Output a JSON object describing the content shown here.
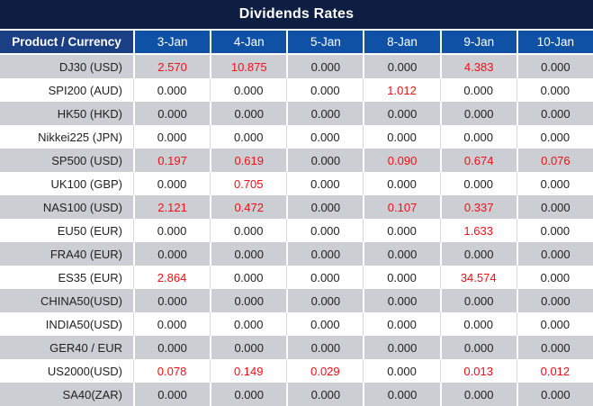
{
  "colors": {
    "title_bar": "#0d1e42",
    "header_product_bg": "#1b3f85",
    "header_date_bg": "#0f52a5",
    "row_alternate_gray": "#cbcfd4",
    "row_white": "#ffffff",
    "value_highlight_red": "#f50d15",
    "value_text": "#212121",
    "header_text": "#ffffff"
  },
  "chart_data": {
    "type": "table",
    "title": "Dividends Rates",
    "product_header": "Product / Currency",
    "columns": [
      "3-Jan",
      "4-Jan",
      "5-Jan",
      "8-Jan",
      "9-Jan",
      "10-Jan"
    ],
    "rows": [
      {
        "product": "DJ30 (USD)",
        "values": [
          "2.570",
          "10.875",
          "0.000",
          "0.000",
          "4.383",
          "0.000"
        ],
        "red": [
          true,
          true,
          false,
          false,
          true,
          false
        ]
      },
      {
        "product": "SPI200 (AUD)",
        "values": [
          "0.000",
          "0.000",
          "0.000",
          "1.012",
          "0.000",
          "0.000"
        ],
        "red": [
          false,
          false,
          false,
          true,
          false,
          false
        ]
      },
      {
        "product": "HK50 (HKD)",
        "values": [
          "0.000",
          "0.000",
          "0.000",
          "0.000",
          "0.000",
          "0.000"
        ],
        "red": [
          false,
          false,
          false,
          false,
          false,
          false
        ]
      },
      {
        "product": "Nikkei225 (JPN)",
        "values": [
          "0.000",
          "0.000",
          "0.000",
          "0.000",
          "0.000",
          "0.000"
        ],
        "red": [
          false,
          false,
          false,
          false,
          false,
          false
        ]
      },
      {
        "product": "SP500 (USD)",
        "values": [
          "0.197",
          "0.619",
          "0.000",
          "0.090",
          "0.674",
          "0.076"
        ],
        "red": [
          true,
          true,
          false,
          true,
          true,
          true
        ]
      },
      {
        "product": "UK100 (GBP)",
        "values": [
          "0.000",
          "0.705",
          "0.000",
          "0.000",
          "0.000",
          "0.000"
        ],
        "red": [
          false,
          true,
          false,
          false,
          false,
          false
        ]
      },
      {
        "product": "NAS100 (USD)",
        "values": [
          "2.121",
          "0.472",
          "0.000",
          "0.107",
          "0.337",
          "0.000"
        ],
        "red": [
          true,
          true,
          false,
          true,
          true,
          false
        ]
      },
      {
        "product": "EU50 (EUR)",
        "values": [
          "0.000",
          "0.000",
          "0.000",
          "0.000",
          "1.633",
          "0.000"
        ],
        "red": [
          false,
          false,
          false,
          false,
          true,
          false
        ]
      },
      {
        "product": "FRA40 (EUR)",
        "values": [
          "0.000",
          "0.000",
          "0.000",
          "0.000",
          "0.000",
          "0.000"
        ],
        "red": [
          false,
          false,
          false,
          false,
          false,
          false
        ]
      },
      {
        "product": "ES35 (EUR)",
        "values": [
          "2.864",
          "0.000",
          "0.000",
          "0.000",
          "34.574",
          "0.000"
        ],
        "red": [
          true,
          false,
          false,
          false,
          true,
          false
        ]
      },
      {
        "product": "CHINA50(USD)",
        "values": [
          "0.000",
          "0.000",
          "0.000",
          "0.000",
          "0.000",
          "0.000"
        ],
        "red": [
          false,
          false,
          false,
          false,
          false,
          false
        ]
      },
      {
        "product": "INDIA50(USD)",
        "values": [
          "0.000",
          "0.000",
          "0.000",
          "0.000",
          "0.000",
          "0.000"
        ],
        "red": [
          false,
          false,
          false,
          false,
          false,
          false
        ]
      },
      {
        "product": "GER40 / EUR",
        "values": [
          "0.000",
          "0.000",
          "0.000",
          "0.000",
          "0.000",
          "0.000"
        ],
        "red": [
          false,
          false,
          false,
          false,
          false,
          false
        ]
      },
      {
        "product": "US2000(USD)",
        "values": [
          "0.078",
          "0.149",
          "0.029",
          "0.000",
          "0.013",
          "0.012"
        ],
        "red": [
          true,
          true,
          true,
          false,
          true,
          true
        ]
      },
      {
        "product": "SA40(ZAR)",
        "values": [
          "0.000",
          "0.000",
          "0.000",
          "0.000",
          "0.000",
          "0.000"
        ],
        "red": [
          false,
          false,
          false,
          false,
          false,
          false
        ]
      }
    ]
  }
}
